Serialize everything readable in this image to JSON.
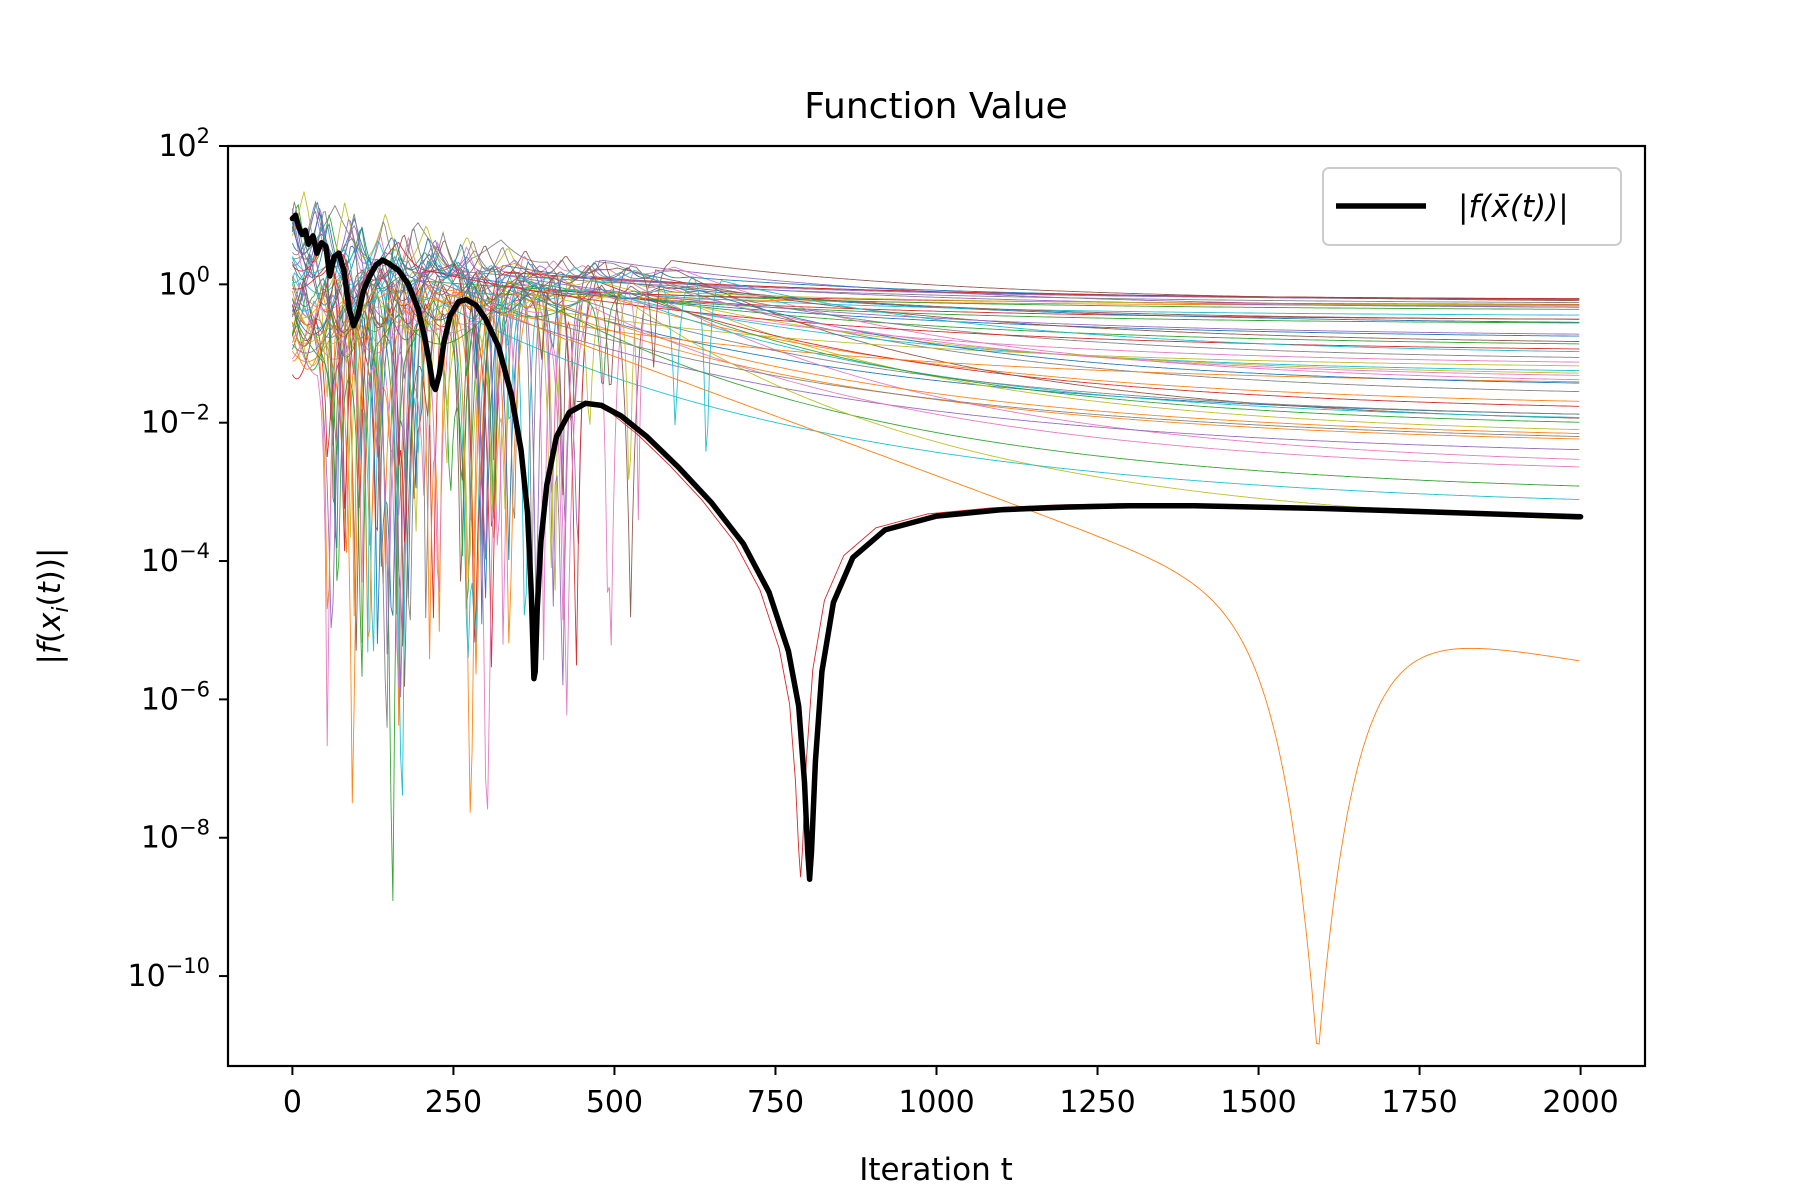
{
  "chart_data": {
    "type": "line",
    "title": "Function Value",
    "xlabel": "Iteration t",
    "ylabel": "|f(x_i(t))|",
    "yscale": "log",
    "xlim": [
      -100,
      2100
    ],
    "ylim_exponent": [
      -11.3,
      2
    ],
    "x_ticks": [
      0,
      250,
      500,
      750,
      1000,
      1250,
      1500,
      1750,
      2000
    ],
    "y_tick_exponents": [
      2,
      0,
      -2,
      -4,
      -6,
      -8,
      -10
    ],
    "y_tick_base": "10",
    "y_tick_labels": [
      "2",
      "0",
      "−2",
      "−4",
      "−6",
      "−8",
      "−10"
    ],
    "grid": false,
    "legend": {
      "position": "top-right",
      "entries": [
        {
          "label": "|f(x̄(t))|",
          "color": "#000000"
        }
      ]
    },
    "series": [
      {
        "name": "|f(x̄(t))|",
        "color": "#000000",
        "points_log10": [
          [
            0,
            0.95
          ],
          [
            5,
            1.0
          ],
          [
            10,
            0.82
          ],
          [
            15,
            0.72
          ],
          [
            20,
            0.78
          ],
          [
            25,
            0.58
          ],
          [
            32,
            0.7
          ],
          [
            38,
            0.45
          ],
          [
            45,
            0.6
          ],
          [
            52,
            0.55
          ],
          [
            58,
            0.12
          ],
          [
            65,
            0.4
          ],
          [
            72,
            0.45
          ],
          [
            80,
            0.2
          ],
          [
            88,
            -0.35
          ],
          [
            95,
            -0.6
          ],
          [
            102,
            -0.45
          ],
          [
            110,
            -0.1
          ],
          [
            120,
            0.12
          ],
          [
            130,
            0.28
          ],
          [
            140,
            0.35
          ],
          [
            150,
            0.3
          ],
          [
            165,
            0.2
          ],
          [
            180,
            0.0
          ],
          [
            195,
            -0.35
          ],
          [
            205,
            -0.75
          ],
          [
            212,
            -1.1
          ],
          [
            218,
            -1.45
          ],
          [
            222,
            -1.52
          ],
          [
            228,
            -1.3
          ],
          [
            235,
            -0.85
          ],
          [
            245,
            -0.45
          ],
          [
            258,
            -0.25
          ],
          [
            270,
            -0.22
          ],
          [
            285,
            -0.3
          ],
          [
            300,
            -0.5
          ],
          [
            320,
            -0.9
          ],
          [
            340,
            -1.6
          ],
          [
            355,
            -2.4
          ],
          [
            365,
            -3.3
          ],
          [
            371,
            -4.5
          ],
          [
            375,
            -5.7
          ],
          [
            377,
            -5.6
          ],
          [
            380,
            -4.7
          ],
          [
            386,
            -3.7
          ],
          [
            395,
            -2.9
          ],
          [
            410,
            -2.2
          ],
          [
            430,
            -1.85
          ],
          [
            455,
            -1.72
          ],
          [
            480,
            -1.75
          ],
          [
            510,
            -1.9
          ],
          [
            550,
            -2.2
          ],
          [
            600,
            -2.65
          ],
          [
            650,
            -3.15
          ],
          [
            700,
            -3.75
          ],
          [
            740,
            -4.45
          ],
          [
            770,
            -5.3
          ],
          [
            786,
            -6.1
          ],
          [
            795,
            -7.2
          ],
          [
            800,
            -8.2
          ],
          [
            803,
            -8.6
          ],
          [
            806,
            -8.2
          ],
          [
            812,
            -6.9
          ],
          [
            822,
            -5.6
          ],
          [
            840,
            -4.6
          ],
          [
            870,
            -3.95
          ],
          [
            920,
            -3.55
          ],
          [
            1000,
            -3.35
          ],
          [
            1100,
            -3.26
          ],
          [
            1200,
            -3.22
          ],
          [
            1300,
            -3.2
          ],
          [
            1400,
            -3.2
          ],
          [
            1500,
            -3.22
          ],
          [
            1600,
            -3.24
          ],
          [
            1700,
            -3.27
          ],
          [
            1800,
            -3.3
          ],
          [
            1900,
            -3.33
          ],
          [
            2000,
            -3.36
          ]
        ]
      }
    ],
    "agent_curves_count": 50,
    "agent_colors": [
      "#1f77b4",
      "#ff7f0e",
      "#2ca02c",
      "#d62728",
      "#9467bd",
      "#8c564b",
      "#e377c2",
      "#7f7f7f",
      "#bcbd22",
      "#17becf"
    ]
  }
}
